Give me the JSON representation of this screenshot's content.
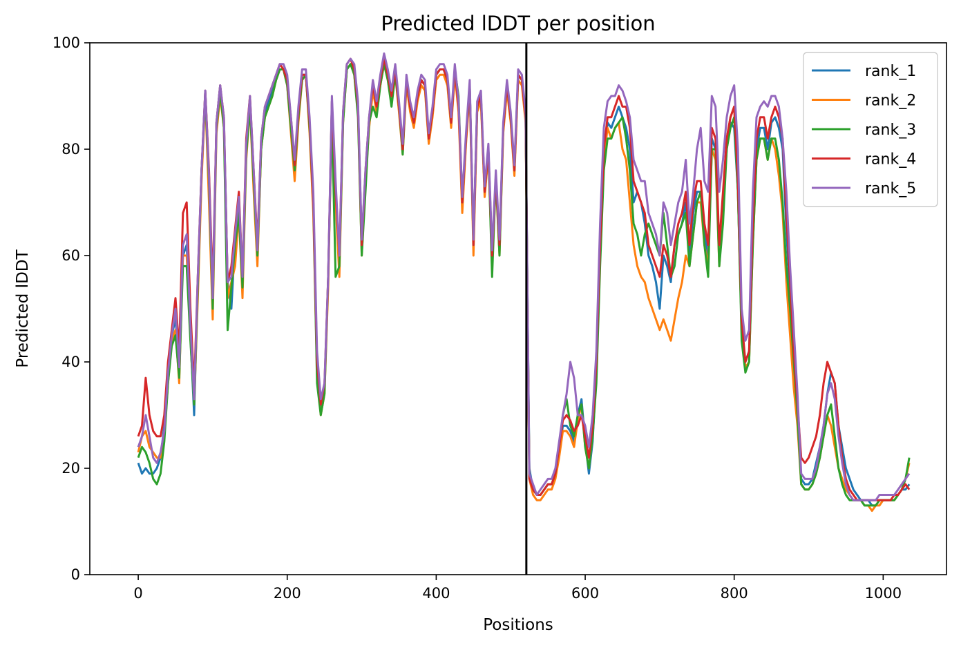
{
  "chart_data": {
    "type": "line",
    "title": "Predicted lDDT per position",
    "xlabel": "Positions",
    "ylabel": "Predicted lDDT",
    "xlim": [
      -65,
      1085
    ],
    "ylim": [
      0,
      100
    ],
    "xticks": [
      0,
      200,
      400,
      600,
      800,
      1000
    ],
    "yticks": [
      0,
      20,
      40,
      60,
      80,
      100
    ],
    "xtick_labels": [
      "0",
      "200",
      "400",
      "600",
      "800",
      "1000"
    ],
    "ytick_labels": [
      "0",
      "20",
      "40",
      "60",
      "80",
      "100"
    ],
    "grid": false,
    "legend_position": "top-right",
    "chain_break_x": 521,
    "chain_break_color": "#000000",
    "x": [
      0,
      5,
      10,
      15,
      20,
      25,
      30,
      35,
      40,
      45,
      50,
      55,
      60,
      65,
      70,
      75,
      80,
      85,
      90,
      95,
      100,
      105,
      110,
      115,
      120,
      125,
      130,
      135,
      140,
      145,
      150,
      155,
      160,
      165,
      170,
      175,
      180,
      185,
      190,
      195,
      200,
      205,
      210,
      215,
      220,
      225,
      230,
      235,
      240,
      245,
      250,
      255,
      260,
      265,
      270,
      275,
      280,
      285,
      290,
      295,
      300,
      305,
      310,
      315,
      320,
      325,
      330,
      335,
      340,
      345,
      350,
      355,
      360,
      365,
      370,
      375,
      380,
      385,
      390,
      395,
      400,
      405,
      410,
      415,
      420,
      425,
      430,
      435,
      440,
      445,
      450,
      455,
      460,
      465,
      470,
      475,
      480,
      485,
      490,
      495,
      500,
      505,
      510,
      515,
      520,
      525,
      530,
      535,
      540,
      545,
      550,
      555,
      560,
      565,
      570,
      575,
      580,
      585,
      590,
      595,
      600,
      605,
      610,
      615,
      620,
      625,
      630,
      635,
      640,
      645,
      650,
      655,
      660,
      665,
      670,
      675,
      680,
      685,
      690,
      695,
      700,
      705,
      710,
      715,
      720,
      725,
      730,
      735,
      740,
      745,
      750,
      755,
      760,
      765,
      770,
      775,
      780,
      785,
      790,
      795,
      800,
      805,
      810,
      815,
      820,
      825,
      830,
      835,
      840,
      845,
      850,
      855,
      860,
      865,
      870,
      875,
      880,
      885,
      890,
      895,
      900,
      905,
      910,
      915,
      920,
      925,
      930,
      935,
      940,
      945,
      950,
      955,
      960,
      965,
      970,
      975,
      980,
      985,
      990,
      995,
      1000,
      1005,
      1010,
      1015,
      1020,
      1025,
      1030,
      1035
    ],
    "series": [
      {
        "name": "rank_1",
        "color": "#1f77b4",
        "values": [
          21,
          19,
          20,
          19,
          19,
          20,
          22,
          28,
          38,
          45,
          48,
          40,
          60,
          62,
          45,
          30,
          55,
          75,
          91,
          75,
          51,
          85,
          92,
          85,
          55,
          50,
          63,
          70,
          55,
          80,
          89,
          75,
          60,
          80,
          87,
          89,
          91,
          93,
          95,
          95,
          93,
          85,
          76,
          86,
          94,
          94,
          84,
          70,
          40,
          31,
          35,
          55,
          89,
          72,
          58,
          86,
          95,
          96,
          95,
          88,
          62,
          75,
          85,
          92,
          88,
          93,
          97,
          94,
          90,
          95,
          88,
          80,
          93,
          88,
          85,
          90,
          93,
          92,
          82,
          87,
          94,
          95,
          95,
          93,
          85,
          95,
          88,
          70,
          82,
          92,
          62,
          88,
          90,
          72,
          80,
          60,
          75,
          62,
          84,
          92,
          86,
          76,
          94,
          93,
          86,
          20,
          16,
          15,
          15,
          16,
          17,
          17,
          19,
          23,
          28,
          28,
          27,
          25,
          30,
          33,
          25,
          19,
          25,
          38,
          60,
          78,
          85,
          84,
          86,
          88,
          86,
          84,
          80,
          70,
          72,
          70,
          66,
          60,
          58,
          55,
          50,
          60,
          58,
          55,
          62,
          64,
          66,
          70,
          60,
          68,
          72,
          72,
          64,
          60,
          82,
          80,
          60,
          70,
          80,
          85,
          84,
          72,
          46,
          40,
          42,
          65,
          80,
          84,
          84,
          80,
          85,
          86,
          84,
          80,
          65,
          52,
          40,
          30,
          18,
          17,
          17,
          18,
          21,
          24,
          28,
          34,
          38,
          36,
          28,
          24,
          20,
          18,
          16,
          15,
          14,
          14,
          14,
          13,
          13,
          14,
          14,
          14,
          14,
          14,
          15,
          16,
          16,
          17
        ]
      },
      {
        "name": "rank_2",
        "color": "#ff7f0e",
        "values": [
          23,
          26,
          27,
          24,
          23,
          22,
          22,
          26,
          36,
          44,
          46,
          36,
          60,
          60,
          45,
          32,
          52,
          74,
          90,
          70,
          48,
          83,
          90,
          84,
          52,
          55,
          58,
          68,
          52,
          78,
          88,
          72,
          58,
          80,
          86,
          88,
          90,
          93,
          95,
          95,
          92,
          83,
          74,
          85,
          93,
          94,
          83,
          68,
          38,
          30,
          34,
          54,
          88,
          70,
          56,
          85,
          95,
          96,
          94,
          87,
          60,
          74,
          84,
          91,
          87,
          92,
          96,
          93,
          89,
          94,
          87,
          79,
          92,
          87,
          84,
          89,
          92,
          91,
          81,
          86,
          93,
          94,
          94,
          92,
          84,
          94,
          87,
          68,
          81,
          91,
          60,
          87,
          89,
          71,
          79,
          58,
          74,
          60,
          83,
          91,
          85,
          75,
          93,
          92,
          85,
          18,
          15,
          14,
          14,
          15,
          16,
          16,
          18,
          22,
          27,
          27,
          26,
          24,
          29,
          32,
          24,
          20,
          26,
          38,
          60,
          78,
          84,
          82,
          84,
          85,
          80,
          78,
          70,
          62,
          58,
          56,
          55,
          52,
          50,
          48,
          46,
          48,
          46,
          44,
          48,
          52,
          55,
          60,
          58,
          64,
          70,
          70,
          62,
          58,
          80,
          78,
          58,
          68,
          82,
          86,
          88,
          72,
          46,
          39,
          40,
          62,
          78,
          82,
          82,
          78,
          82,
          80,
          75,
          68,
          55,
          45,
          35,
          28,
          17,
          16,
          16,
          17,
          19,
          22,
          26,
          30,
          28,
          24,
          20,
          18,
          16,
          15,
          14,
          14,
          14,
          13,
          13,
          12,
          13,
          13,
          14,
          14,
          14,
          14,
          15,
          16,
          18,
          21
        ]
      },
      {
        "name": "rank_3",
        "color": "#2ca02c",
        "values": [
          22,
          24,
          23,
          21,
          18,
          17,
          19,
          25,
          36,
          43,
          45,
          37,
          58,
          58,
          44,
          32,
          54,
          76,
          90,
          74,
          50,
          84,
          91,
          84,
          46,
          54,
          62,
          68,
          54,
          79,
          88,
          74,
          60,
          80,
          86,
          88,
          90,
          93,
          95,
          95,
          92,
          84,
          76,
          86,
          93,
          94,
          84,
          70,
          36,
          30,
          34,
          56,
          86,
          56,
          58,
          85,
          95,
          96,
          94,
          86,
          60,
          72,
          85,
          88,
          86,
          92,
          96,
          93,
          88,
          94,
          88,
          79,
          93,
          88,
          85,
          90,
          93,
          92,
          82,
          87,
          94,
          95,
          95,
          93,
          85,
          95,
          90,
          70,
          82,
          92,
          62,
          88,
          90,
          72,
          80,
          56,
          75,
          60,
          84,
          92,
          86,
          76,
          94,
          93,
          86,
          19,
          16,
          15,
          15,
          16,
          17,
          17,
          19,
          24,
          30,
          33,
          28,
          26,
          30,
          32,
          24,
          20,
          26,
          36,
          58,
          76,
          82,
          82,
          84,
          85,
          86,
          82,
          76,
          66,
          64,
          60,
          64,
          66,
          64,
          62,
          60,
          68,
          62,
          56,
          58,
          64,
          66,
          68,
          58,
          64,
          70,
          72,
          62,
          56,
          80,
          80,
          58,
          66,
          80,
          84,
          86,
          72,
          44,
          38,
          40,
          62,
          78,
          82,
          82,
          78,
          82,
          82,
          78,
          70,
          58,
          50,
          40,
          30,
          17,
          16,
          16,
          17,
          19,
          22,
          26,
          30,
          32,
          26,
          20,
          17,
          15,
          14,
          14,
          14,
          14,
          13,
          13,
          13,
          13,
          14,
          14,
          14,
          14,
          14,
          15,
          16,
          18,
          22
        ]
      },
      {
        "name": "rank_4",
        "color": "#d62728",
        "values": [
          26,
          28,
          37,
          30,
          27,
          26,
          26,
          30,
          40,
          46,
          52,
          42,
          68,
          70,
          50,
          35,
          56,
          76,
          91,
          76,
          54,
          85,
          92,
          86,
          55,
          58,
          65,
          72,
          56,
          82,
          90,
          76,
          62,
          82,
          88,
          90,
          92,
          94,
          96,
          95,
          93,
          86,
          77,
          87,
          94,
          94,
          85,
          70,
          40,
          32,
          36,
          56,
          89,
          72,
          60,
          87,
          96,
          97,
          95,
          88,
          62,
          76,
          86,
          92,
          88,
          93,
          97,
          94,
          90,
          95,
          88,
          80,
          93,
          88,
          85,
          90,
          93,
          92,
          82,
          87,
          94,
          95,
          95,
          93,
          85,
          95,
          88,
          70,
          82,
          92,
          62,
          88,
          90,
          72,
          80,
          60,
          75,
          62,
          84,
          92,
          86,
          76,
          94,
          93,
          86,
          18,
          16,
          15,
          15,
          16,
          17,
          17,
          19,
          24,
          29,
          30,
          29,
          27,
          28,
          30,
          26,
          22,
          28,
          40,
          62,
          80,
          86,
          86,
          88,
          90,
          88,
          88,
          84,
          74,
          72,
          70,
          68,
          62,
          60,
          58,
          56,
          62,
          60,
          56,
          62,
          66,
          68,
          72,
          62,
          70,
          74,
          74,
          66,
          62,
          84,
          82,
          62,
          72,
          82,
          86,
          88,
          74,
          48,
          40,
          42,
          66,
          82,
          86,
          86,
          82,
          86,
          88,
          86,
          82,
          68,
          55,
          42,
          32,
          22,
          21,
          22,
          24,
          26,
          30,
          36,
          40,
          38,
          36,
          28,
          22,
          18,
          16,
          15,
          14,
          14,
          14,
          14,
          14,
          14,
          14,
          14,
          14,
          14,
          15,
          15,
          16,
          17,
          16
        ]
      },
      {
        "name": "rank_5",
        "color": "#9467bd",
        "values": [
          24,
          26,
          30,
          26,
          22,
          21,
          23,
          27,
          38,
          45,
          50,
          39,
          62,
          64,
          47,
          33,
          56,
          76,
          91,
          75,
          52,
          85,
          92,
          86,
          55,
          56,
          64,
          71,
          56,
          81,
          90,
          76,
          61,
          82,
          88,
          90,
          92,
          94,
          96,
          96,
          94,
          86,
          78,
          88,
          95,
          95,
          86,
          72,
          42,
          33,
          36,
          56,
          90,
          74,
          60,
          87,
          96,
          97,
          96,
          89,
          63,
          76,
          86,
          93,
          89,
          94,
          98,
          95,
          91,
          96,
          89,
          81,
          94,
          89,
          86,
          91,
          94,
          93,
          83,
          88,
          95,
          96,
          96,
          94,
          86,
          96,
          89,
          71,
          83,
          93,
          63,
          89,
          91,
          73,
          81,
          61,
          76,
          63,
          85,
          93,
          87,
          77,
          95,
          94,
          87,
          19,
          17,
          15,
          16,
          17,
          18,
          18,
          20,
          25,
          30,
          34,
          40,
          37,
          30,
          30,
          28,
          24,
          30,
          42,
          66,
          84,
          89,
          90,
          90,
          92,
          91,
          89,
          86,
          78,
          76,
          74,
          74,
          68,
          66,
          64,
          60,
          70,
          68,
          62,
          66,
          70,
          72,
          78,
          66,
          72,
          80,
          84,
          74,
          72,
          90,
          88,
          72,
          78,
          86,
          90,
          92,
          80,
          50,
          44,
          46,
          72,
          86,
          88,
          89,
          88,
          90,
          90,
          88,
          82,
          72,
          58,
          46,
          34,
          19,
          18,
          18,
          18,
          20,
          24,
          28,
          34,
          36,
          33,
          26,
          21,
          17,
          15,
          14,
          14,
          14,
          14,
          14,
          14,
          14,
          15,
          15,
          15,
          15,
          15,
          16,
          17,
          18,
          19
        ]
      }
    ]
  }
}
